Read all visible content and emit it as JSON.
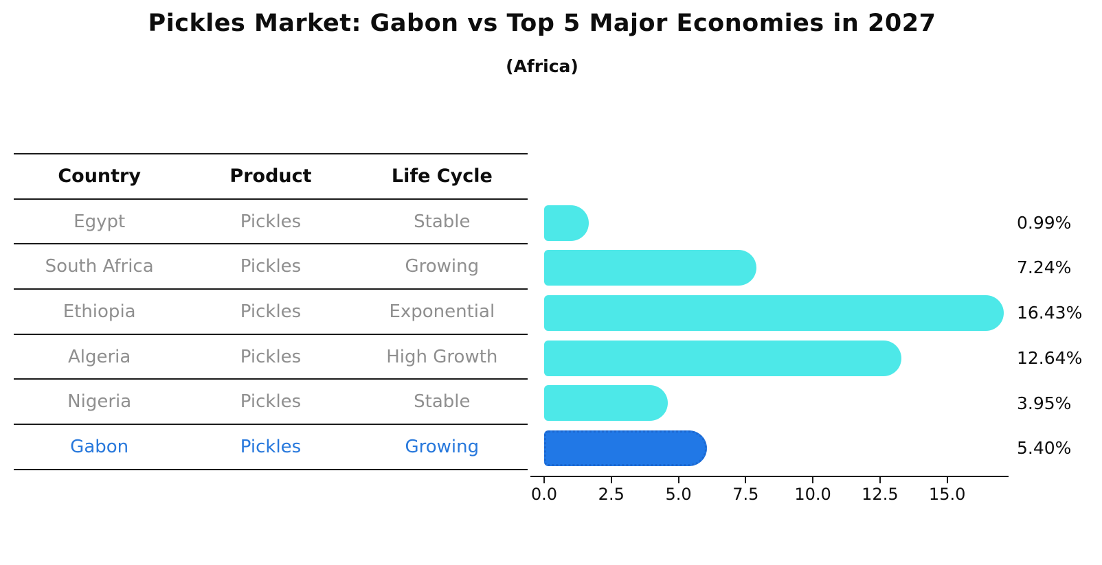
{
  "title": "Pickles Market: Gabon vs Top 5 Major Economies in 2027",
  "subtitle": "(Africa)",
  "colors": {
    "bar_default": "#4de8e8",
    "bar_highlight": "#2178e6",
    "bar_highlight_border": "#1b67cf",
    "table_text": "#8f8f8f",
    "highlight_text": "#2778dc",
    "line": "#1a1a1a",
    "text": "#0d0d0d"
  },
  "table": {
    "headers": [
      "Country",
      "Product",
      "Life Cycle"
    ],
    "rows": [
      {
        "country": "Egypt",
        "product": "Pickles",
        "life_cycle": "Stable",
        "highlight": false
      },
      {
        "country": "South Africa",
        "product": "Pickles",
        "life_cycle": "Growing",
        "highlight": false
      },
      {
        "country": "Ethiopia",
        "product": "Pickles",
        "life_cycle": "Exponential",
        "highlight": false
      },
      {
        "country": "Algeria",
        "product": "Pickles",
        "life_cycle": "High Growth",
        "highlight": false
      },
      {
        "country": "Nigeria",
        "product": "Pickles",
        "life_cycle": "Stable",
        "highlight": false
      },
      {
        "country": "Gabon",
        "product": "Pickles",
        "life_cycle": "Growing",
        "highlight": true
      }
    ]
  },
  "chart_data": {
    "type": "bar",
    "orientation": "horizontal",
    "title": "Pickles Market: Gabon vs Top 5 Major Economies in 2027",
    "subtitle": "(Africa)",
    "categories": [
      "Egypt",
      "South Africa",
      "Ethiopia",
      "Algeria",
      "Nigeria",
      "Gabon"
    ],
    "values": [
      0.99,
      7.24,
      16.43,
      12.64,
      3.95,
      5.4
    ],
    "value_labels": [
      "0.99%",
      "7.24%",
      "16.43%",
      "12.64%",
      "3.95%",
      "5.40%"
    ],
    "highlight_index": 5,
    "xlabel": "",
    "ylabel": "",
    "xlim": [
      0,
      17.3
    ],
    "x_ticks": [
      0.0,
      2.5,
      5.0,
      7.5,
      10.0,
      12.5,
      15.0
    ],
    "x_tick_labels": [
      "0.0",
      "2.5",
      "5.0",
      "7.5",
      "10.0",
      "12.5",
      "15.0"
    ],
    "grid": false,
    "legend": false
  }
}
